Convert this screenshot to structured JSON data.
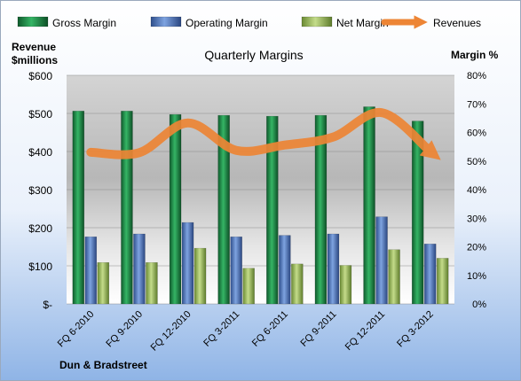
{
  "chart_data": {
    "type": "bar",
    "title": "Quarterly Margins",
    "left_axis_label_line1": "Revenue",
    "left_axis_label_line2": "$millions",
    "right_axis_label": "Margin %",
    "company": "Dun & Bradstreet",
    "categories": [
      "FQ 6-2010",
      "FQ 9-2010",
      "FQ 12-2010",
      "FQ 3-2011",
      "FQ 6-2011",
      "FQ 9-2011",
      "FQ 12-2011",
      "FQ 3-2012"
    ],
    "left_ticks": [
      "$600",
      "$500",
      "$400",
      "$300",
      "$200",
      "$100",
      "$-"
    ],
    "right_ticks": [
      "80%",
      "70%",
      "60%",
      "50%",
      "40%",
      "30%",
      "20%",
      "10%",
      "0%"
    ],
    "ylim_left": [
      0,
      600
    ],
    "ylim_right": [
      0,
      80
    ],
    "legend_position": "top",
    "series": [
      {
        "name": "Gross Margin",
        "axis": "right",
        "kind": "bar",
        "color": "#1e8a4a",
        "values": [
          67.5,
          67.5,
          66.3,
          66.0,
          65.7,
          66.0,
          69.0,
          64.0
        ]
      },
      {
        "name": "Operating Margin",
        "axis": "right",
        "kind": "bar",
        "color": "#4f78c2",
        "values": [
          23.5,
          24.5,
          28.5,
          23.5,
          24.0,
          24.5,
          30.5,
          21.0
        ]
      },
      {
        "name": "Net Margin",
        "axis": "right",
        "kind": "bar",
        "color": "#9bbb59",
        "values": [
          14.5,
          14.5,
          19.5,
          12.5,
          14.0,
          13.5,
          19.0,
          16.0
        ]
      },
      {
        "name": "Revenues",
        "axis": "left",
        "kind": "line",
        "color": "#ed8535",
        "values": [
          398,
          397,
          475,
          403,
          417,
          438,
          502,
          400
        ]
      }
    ]
  }
}
